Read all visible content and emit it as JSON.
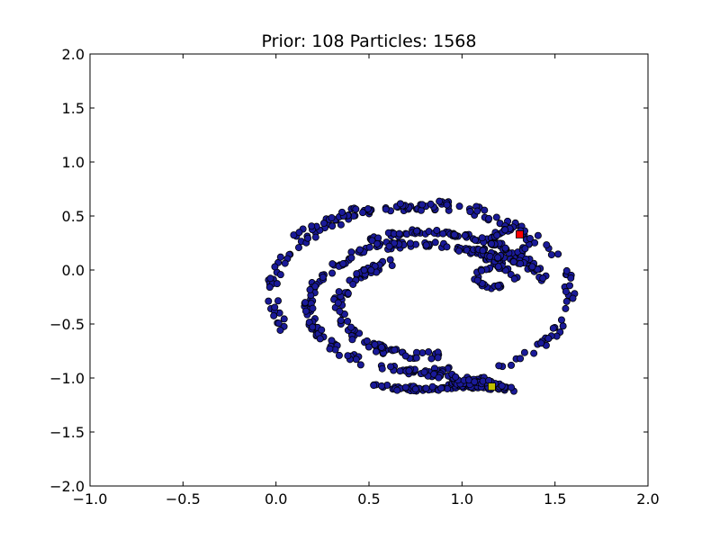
{
  "chart_data": {
    "type": "scatter",
    "title": "Prior: 108 Particles: 1568",
    "xlabel": "",
    "ylabel": "",
    "xlim": [
      -1.0,
      2.0
    ],
    "ylim": [
      -2.0,
      2.0
    ],
    "xticks": [
      -1.0,
      -0.5,
      0.0,
      0.5,
      1.0,
      1.5,
      2.0
    ],
    "yticks": [
      -2.0,
      -1.5,
      -1.0,
      -0.5,
      0.0,
      0.5,
      1.0,
      1.5,
      2.0
    ],
    "xtick_labels": [
      "−1.0",
      "−0.5",
      "0.0",
      "0.5",
      "1.0",
      "1.5",
      "2.0"
    ],
    "ytick_labels": [
      "−2.0",
      "−1.5",
      "−1.0",
      "−0.5",
      "0.0",
      "0.5",
      "1.0",
      "1.5",
      "2.0"
    ],
    "grid": false,
    "legend": false,
    "colors": {
      "particles_fill": "#1a1a99",
      "particles_edge": "#000000",
      "red_marker": "#ff0000",
      "yellow_marker": "#bfbf00"
    },
    "series": [
      {
        "marker": "circle",
        "arcs": [
          {
            "cx": 0.78,
            "cy": -0.22,
            "r": 0.8,
            "start_deg": -63,
            "end_deg": 205,
            "count": 130,
            "width": 0.06
          },
          {
            "cx": 0.78,
            "cy": -0.28,
            "r": 0.9,
            "start_deg": 63,
            "end_deg": 140,
            "count": 40,
            "width": 0.05
          },
          {
            "cx": 0.8,
            "cy": -0.35,
            "r": 0.7,
            "start_deg": 18,
            "end_deg": 115,
            "count": 90,
            "width": 0.05
          },
          {
            "cx": 0.78,
            "cy": -0.32,
            "r": 0.56,
            "start_deg": 20,
            "end_deg": 110,
            "count": 70,
            "width": 0.05
          },
          {
            "cx": 0.78,
            "cy": -0.35,
            "r": 0.44,
            "start_deg": 110,
            "end_deg": 285,
            "count": 90,
            "width": 0.07
          },
          {
            "cx": 0.78,
            "cy": -0.34,
            "r": 0.6,
            "start_deg": 100,
            "end_deg": 285,
            "count": 110,
            "width": 0.06
          },
          {
            "cx": 0.78,
            "cy": -0.36,
            "r": 0.74,
            "start_deg": 250,
            "end_deg": 300,
            "count": 60,
            "width": 0.05
          }
        ],
        "segments": [
          {
            "x0": 0.93,
            "y0": -1.05,
            "x1": 1.26,
            "y1": -1.1,
            "count": 55,
            "width": 0.05
          },
          {
            "x0": 0.68,
            "y0": -0.92,
            "x1": 1.25,
            "y1": -1.07,
            "count": 45,
            "width": 0.05
          },
          {
            "x0": 1.1,
            "y0": 0.18,
            "x1": 1.38,
            "y1": 0.02,
            "count": 30,
            "width": 0.04
          }
        ],
        "curls": [
          {
            "cx": 1.26,
            "cy": 0.27,
            "r": 0.1,
            "start_deg": -60,
            "end_deg": 200,
            "count": 28,
            "width": 0.03
          },
          {
            "cx": 1.17,
            "cy": -0.07,
            "r": 0.09,
            "start_deg": 60,
            "end_deg": 300,
            "count": 24,
            "width": 0.03
          }
        ]
      },
      {
        "marker": "square",
        "color": "red_marker",
        "points": [
          {
            "x": 1.31,
            "y": 0.33
          }
        ]
      },
      {
        "marker": "square",
        "color": "yellow_marker",
        "points": [
          {
            "x": 1.16,
            "y": -1.08
          }
        ]
      }
    ]
  }
}
